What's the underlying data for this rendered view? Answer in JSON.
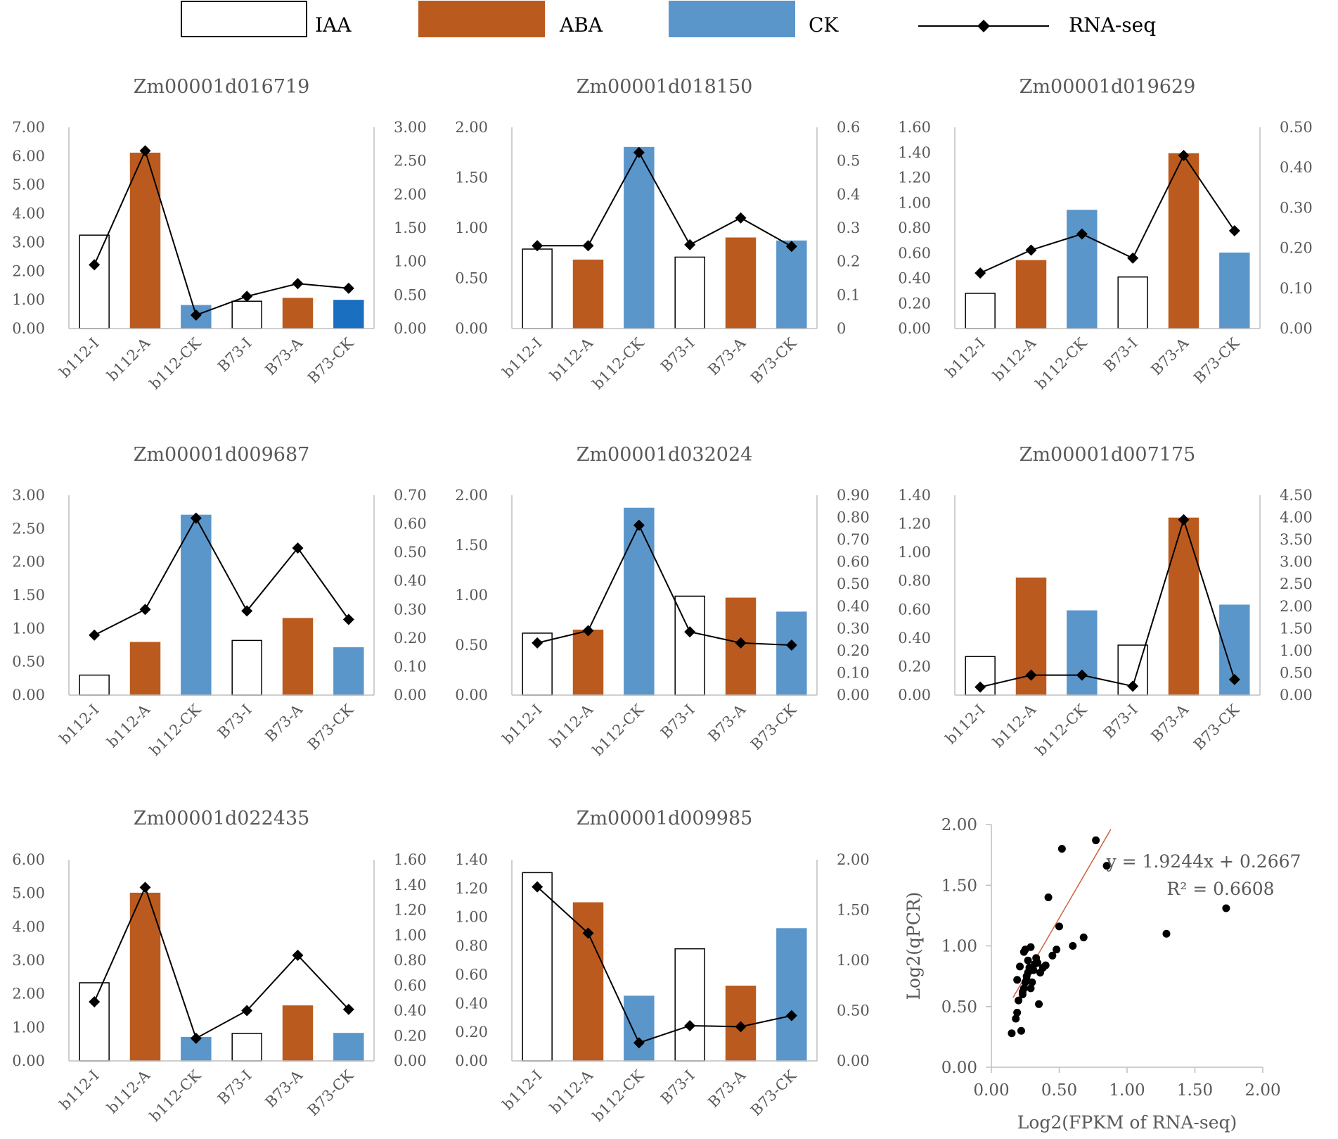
{
  "legend": [
    {
      "key": "IAA",
      "label": "IAA",
      "type": "bar",
      "fill": "#ffffff",
      "stroke": "#000000"
    },
    {
      "key": "ABA",
      "label": "ABA",
      "type": "bar",
      "fill": "#bb5a1e",
      "stroke": "#bb5a1e"
    },
    {
      "key": "CK",
      "label": "CK",
      "type": "bar",
      "fill": "#5b96cb",
      "stroke": "#5b96cb"
    },
    {
      "key": "RNA",
      "label": "RNA-seq",
      "type": "line-marker",
      "stroke": "#000000"
    }
  ],
  "colors": {
    "IAA": "#ffffff",
    "ABA": "#bb5a1e",
    "CK": "#5b96cb",
    "CK_dark": "#1a6fc0",
    "line": "#000000",
    "axis": "#bfbfbf",
    "trend": "#d0603a"
  },
  "chart_data": [
    {
      "type": "bar+line",
      "title": "Zm00001d016719",
      "categories": [
        "b112-I",
        "b112-A",
        "b112-CK",
        "B73-I",
        "B73-A",
        "B73-CK"
      ],
      "bar_colors": [
        "IAA",
        "ABA",
        "CK",
        "IAA",
        "ABA",
        "CK_dark"
      ],
      "bars": [
        3.25,
        6.1,
        0.8,
        0.95,
        1.05,
        0.98
      ],
      "line": [
        0.95,
        2.65,
        0.2,
        0.48,
        0.67,
        0.6
      ],
      "y_left": {
        "min": 0,
        "max": 7,
        "ticks": [
          "0.00",
          "1.00",
          "2.00",
          "3.00",
          "4.00",
          "5.00",
          "6.00",
          "7.00"
        ]
      },
      "y_right": {
        "min": 0,
        "max": 3,
        "ticks": [
          "0.00",
          "0.50",
          "1.00",
          "1.50",
          "2.00",
          "2.50",
          "3.00"
        ]
      }
    },
    {
      "type": "bar+line",
      "title": "Zm00001d018150",
      "categories": [
        "b112-I",
        "b112-A",
        "b112-CK",
        "B73-I",
        "B73-A",
        "B73-CK"
      ],
      "bar_colors": [
        "IAA",
        "ABA",
        "CK",
        "IAA",
        "ABA",
        "CK"
      ],
      "bars": [
        0.79,
        0.68,
        1.8,
        0.71,
        0.9,
        0.87
      ],
      "line": [
        0.247,
        0.247,
        0.525,
        0.25,
        0.33,
        0.245
      ],
      "y_left": {
        "min": 0,
        "max": 2,
        "ticks": [
          "0.00",
          "0.50",
          "1.00",
          "1.50",
          "2.00"
        ]
      },
      "y_right": {
        "min": 0,
        "max": 0.6,
        "ticks": [
          "0",
          "0.1",
          "0.2",
          "0.3",
          "0.4",
          "0.5",
          "0.6"
        ]
      }
    },
    {
      "type": "bar+line",
      "title": "Zm00001d019629",
      "categories": [
        "b112-I",
        "b112-A",
        "b112-CK",
        "B73-I",
        "B73-A",
        "B73-CK"
      ],
      "bar_colors": [
        "IAA",
        "ABA",
        "CK",
        "IAA",
        "ABA",
        "CK"
      ],
      "bars": [
        0.28,
        0.54,
        0.94,
        0.41,
        1.39,
        0.6
      ],
      "line": [
        0.138,
        0.195,
        0.235,
        0.175,
        0.43,
        0.243
      ],
      "y_left": {
        "min": 0,
        "max": 1.6,
        "ticks": [
          "0.00",
          "0.20",
          "0.40",
          "0.60",
          "0.80",
          "1.00",
          "1.20",
          "1.40",
          "1.60"
        ]
      },
      "y_right": {
        "min": 0,
        "max": 0.5,
        "ticks": [
          "0.00",
          "0.10",
          "0.20",
          "0.30",
          "0.40",
          "0.50"
        ]
      }
    },
    {
      "type": "bar+line",
      "title": "Zm00001d009687",
      "categories": [
        "b112-I",
        "b112-A",
        "b112-CK",
        "B73-I",
        "B73-A",
        "B73-CK"
      ],
      "bar_colors": [
        "IAA",
        "ABA",
        "CK",
        "IAA",
        "ABA",
        "CK"
      ],
      "bars": [
        0.3,
        0.79,
        2.7,
        0.82,
        1.15,
        0.71
      ],
      "line": [
        0.21,
        0.3,
        0.62,
        0.295,
        0.515,
        0.265
      ],
      "y_left": {
        "min": 0,
        "max": 3,
        "ticks": [
          "0.00",
          "0.50",
          "1.00",
          "1.50",
          "2.00",
          "2.50",
          "3.00"
        ]
      },
      "y_right": {
        "min": 0,
        "max": 0.7,
        "ticks": [
          "0.00",
          "0.10",
          "0.20",
          "0.30",
          "0.40",
          "0.50",
          "0.60",
          "0.70"
        ]
      }
    },
    {
      "type": "bar+line",
      "title": "Zm00001d032024",
      "categories": [
        "b112-I",
        "b112-A",
        "b112-CK",
        "B73-I",
        "B73-A",
        "B73-CK"
      ],
      "bar_colors": [
        "IAA",
        "ABA",
        "CK",
        "IAA",
        "ABA",
        "CK"
      ],
      "bars": [
        0.62,
        0.65,
        1.87,
        0.99,
        0.97,
        0.83
      ],
      "line": [
        0.235,
        0.29,
        0.765,
        0.285,
        0.235,
        0.225
      ],
      "y_left": {
        "min": 0,
        "max": 2,
        "ticks": [
          "0.00",
          "0.50",
          "1.00",
          "1.50",
          "2.00"
        ]
      },
      "y_right": {
        "min": 0,
        "max": 0.9,
        "ticks": [
          "0.00",
          "0.10",
          "0.20",
          "0.30",
          "0.40",
          "0.50",
          "0.60",
          "0.70",
          "0.80",
          "0.90"
        ]
      }
    },
    {
      "type": "bar+line",
      "title": "Zm00001d007175",
      "categories": [
        "b112-I",
        "b112-A",
        "b112-CK",
        "B73-I",
        "B73-A",
        "B73-CK"
      ],
      "bar_colors": [
        "IAA",
        "ABA",
        "CK",
        "IAA",
        "ABA",
        "CK"
      ],
      "bars": [
        0.27,
        0.82,
        0.59,
        0.35,
        1.24,
        0.63
      ],
      "line": [
        0.18,
        0.45,
        0.45,
        0.2,
        3.95,
        0.35
      ],
      "y_left": {
        "min": 0,
        "max": 1.4,
        "ticks": [
          "0.00",
          "0.20",
          "0.40",
          "0.60",
          "0.80",
          "1.00",
          "1.20",
          "1.40"
        ]
      },
      "y_right": {
        "min": 0,
        "max": 4.5,
        "ticks": [
          "0.00",
          "0.50",
          "1.00",
          "1.50",
          "2.00",
          "2.50",
          "3.00",
          "3.50",
          "4.00",
          "4.50"
        ]
      }
    },
    {
      "type": "bar+line",
      "title": "Zm00001d022435",
      "categories": [
        "b112-I",
        "b112-A",
        "b112-CK",
        "B73-I",
        "B73-A",
        "B73-CK"
      ],
      "bar_colors": [
        "IAA",
        "ABA",
        "CK",
        "IAA",
        "ABA",
        "CK"
      ],
      "bars": [
        2.33,
        5.0,
        0.7,
        0.82,
        1.64,
        0.82
      ],
      "line": [
        0.47,
        1.38,
        0.18,
        0.4,
        0.84,
        0.41
      ],
      "y_left": {
        "min": 0,
        "max": 6,
        "ticks": [
          "0.00",
          "1.00",
          "2.00",
          "3.00",
          "4.00",
          "5.00",
          "6.00"
        ]
      },
      "y_right": {
        "min": 0,
        "max": 1.6,
        "ticks": [
          "0.00",
          "0.20",
          "0.40",
          "0.60",
          "0.80",
          "1.00",
          "1.20",
          "1.40",
          "1.60"
        ]
      }
    },
    {
      "type": "bar+line",
      "title": "Zm00001d009985",
      "categories": [
        "b112-I",
        "b112-A",
        "b112-CK",
        "B73-I",
        "B73-A",
        "B73-CK"
      ],
      "bar_colors": [
        "IAA",
        "ABA",
        "CK",
        "IAA",
        "ABA",
        "CK"
      ],
      "bars": [
        1.31,
        1.1,
        0.45,
        0.78,
        0.52,
        0.92
      ],
      "line": [
        1.73,
        1.27,
        0.18,
        0.35,
        0.34,
        0.45
      ],
      "y_left": {
        "min": 0,
        "max": 1.4,
        "ticks": [
          "0.00",
          "0.20",
          "0.40",
          "0.60",
          "0.80",
          "1.00",
          "1.20",
          "1.40"
        ]
      },
      "y_right": {
        "min": 0,
        "max": 2,
        "ticks": [
          "0.00",
          "0.50",
          "1.00",
          "1.50",
          "2.00"
        ]
      }
    },
    {
      "type": "scatter",
      "title": "",
      "xlabel": "Log2(FPKM of RNA-seq)",
      "ylabel": "Log2(qPCR)",
      "x_range": [
        0,
        2
      ],
      "y_range": [
        0,
        2
      ],
      "x_ticks": [
        "0.00",
        "0.50",
        "1.00",
        "1.50",
        "2.00"
      ],
      "y_ticks": [
        "0.00",
        "0.50",
        "1.00",
        "1.50",
        "2.00"
      ],
      "equation": "y = 1.9244x + 0.2667",
      "r_squared": "R² = 0.6608",
      "trend": {
        "slope": 1.9244,
        "intercept": 0.2667,
        "x_from": 0.16,
        "x_to": 0.88
      },
      "points": [
        [
          0.15,
          0.28
        ],
        [
          0.18,
          0.4
        ],
        [
          0.19,
          0.45
        ],
        [
          0.2,
          0.55
        ],
        [
          0.22,
          0.3
        ],
        [
          0.23,
          0.6
        ],
        [
          0.24,
          0.65
        ],
        [
          0.25,
          0.7
        ],
        [
          0.26,
          0.75
        ],
        [
          0.27,
          0.78
        ],
        [
          0.28,
          0.82
        ],
        [
          0.29,
          0.65
        ],
        [
          0.3,
          0.7
        ],
        [
          0.31,
          0.8
        ],
        [
          0.32,
          0.85
        ],
        [
          0.33,
          0.9
        ],
        [
          0.35,
          0.52
        ],
        [
          0.36,
          0.78
        ],
        [
          0.38,
          0.82
        ],
        [
          0.4,
          0.84
        ],
        [
          0.42,
          1.4
        ],
        [
          0.45,
          0.92
        ],
        [
          0.48,
          0.97
        ],
        [
          0.5,
          1.16
        ],
        [
          0.52,
          1.8
        ],
        [
          0.19,
          0.72
        ],
        [
          0.21,
          0.83
        ],
        [
          0.24,
          0.95
        ],
        [
          0.25,
          0.97
        ],
        [
          0.27,
          0.88
        ],
        [
          0.29,
          0.99
        ],
        [
          0.34,
          0.86
        ],
        [
          0.6,
          1.0
        ],
        [
          0.68,
          1.07
        ],
        [
          0.77,
          1.87
        ],
        [
          0.85,
          1.66
        ],
        [
          1.29,
          1.1
        ],
        [
          1.73,
          1.31
        ],
        [
          0.23,
          0.62
        ],
        [
          0.26,
          0.72
        ]
      ]
    }
  ]
}
